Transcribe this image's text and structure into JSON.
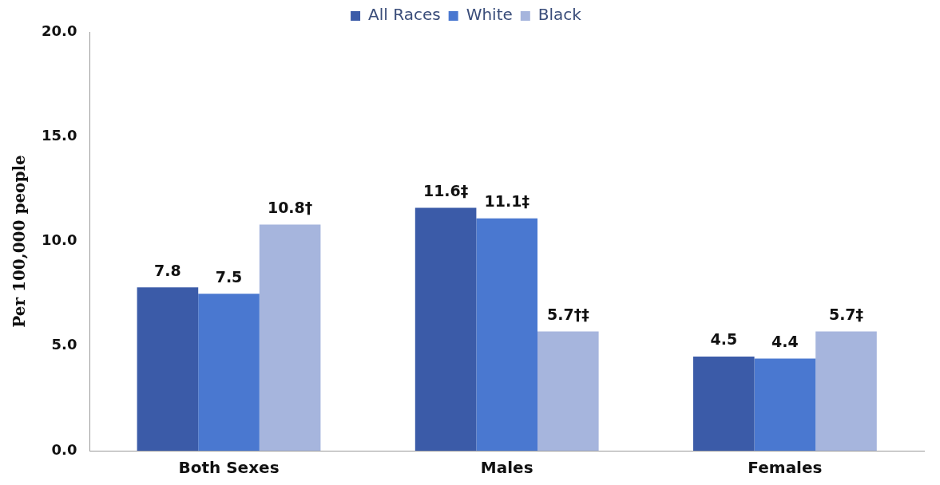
{
  "chart_data": {
    "type": "bar",
    "ylabel": "Per 100,000 people",
    "categories": [
      "Both Sexes",
      "Males",
      "Females"
    ],
    "series": [
      {
        "name": "All Races",
        "color": "#3b5ba8",
        "values": [
          7.8,
          11.6,
          4.5
        ],
        "value_labels": [
          "7.8",
          "11.6‡",
          "4.5"
        ]
      },
      {
        "name": "White",
        "color": "#4a78d0",
        "values": [
          7.5,
          11.1,
          4.4
        ],
        "value_labels": [
          "7.5",
          "11.1‡",
          "4.4"
        ]
      },
      {
        "name": "Black",
        "color": "#a6b5dd",
        "values": [
          10.8,
          5.7,
          5.7
        ],
        "value_labels": [
          "10.8†",
          "5.7†‡",
          "5.7‡"
        ]
      }
    ],
    "ylim": [
      0,
      20
    ],
    "yticks": [
      {
        "value": 0,
        "label": "0.0"
      },
      {
        "value": 5,
        "label": "5.0"
      },
      {
        "value": 10,
        "label": "10.0"
      },
      {
        "value": 15,
        "label": "15.0"
      },
      {
        "value": 20,
        "label": "20.0"
      }
    ],
    "grid": false,
    "legend": "top"
  }
}
